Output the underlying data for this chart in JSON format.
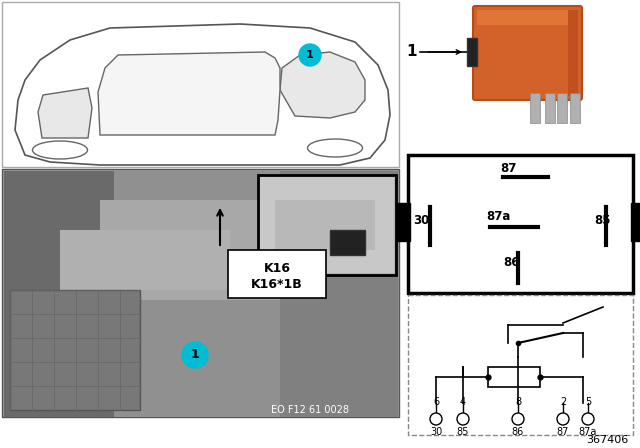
{
  "background_color": "#ffffff",
  "doc_number": "367406",
  "eo_number": "EO F12 61 0028",
  "relay_color": "#d2612a",
  "relay_dark": "#b84a15",
  "callout_color": "#00bcd4",
  "photo_bg": "#a0a0a0",
  "photo_bg2": "#8a8a8a",
  "inset_bg": "#c0c0c0",
  "k16_label": "K16",
  "k16b_label": "K16*1B"
}
